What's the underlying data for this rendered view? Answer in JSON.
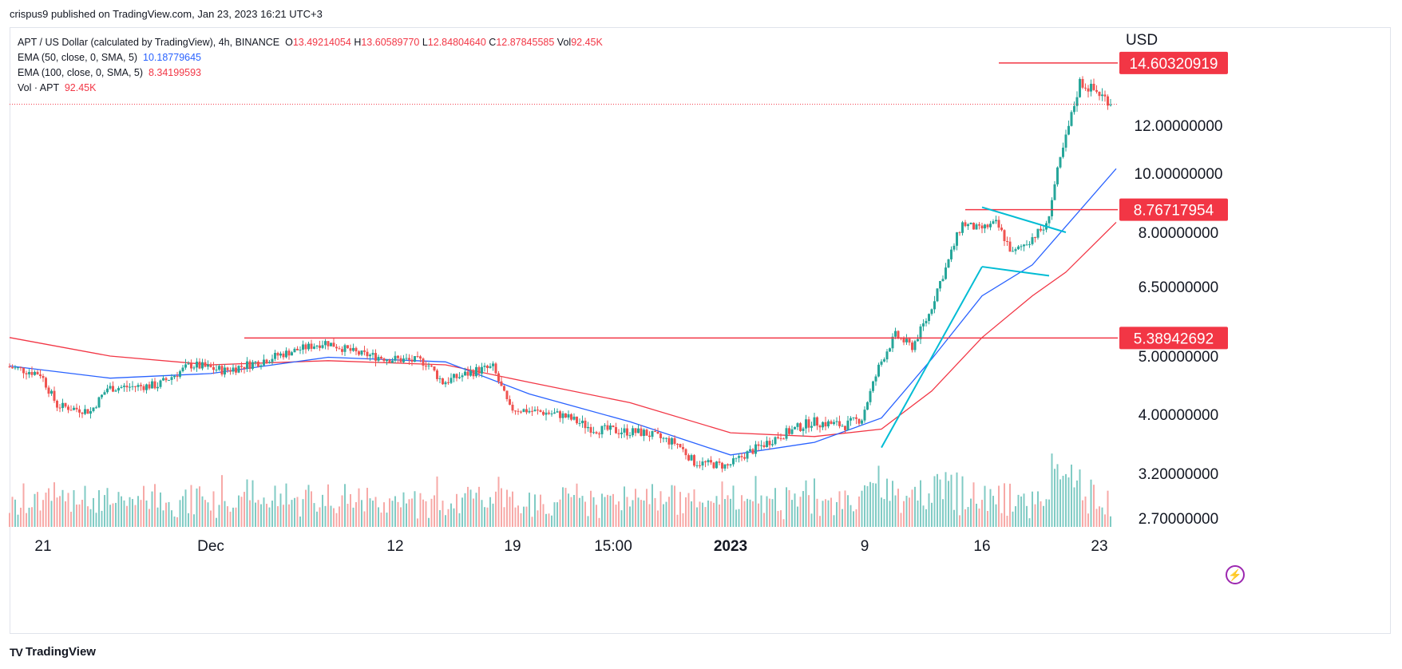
{
  "header": {
    "published_text": "crispus9 published on TradingView.com, Jan 23, 2023 16:21 UTC+3"
  },
  "legend": {
    "symbol": "APT / US Dollar (calculated by TradingView), 4h, BINANCE",
    "o_key": "O",
    "o_val": "13.49214054",
    "h_key": "H",
    "h_val": "13.60589770",
    "l_key": "L",
    "l_val": "12.84804640",
    "c_key": "C",
    "c_val": "12.87845585",
    "vol_key": "Vol",
    "vol_val": "92.45K",
    "ema50_label": "EMA (50, close, 0, SMA, 5)",
    "ema50_val": "10.18779645",
    "ema100_label": "EMA (100, close, 0, SMA, 5)",
    "ema100_val": "8.34199593",
    "volume_label": "Vol · APT",
    "volume_val": "92.45K"
  },
  "footer": {
    "brand": "TradingView",
    "logo": "TV"
  },
  "colors": {
    "up": "#26a69a",
    "down": "#ef5350",
    "ema50": "#2962ff",
    "ema100": "#f23645",
    "hline": "#f23645",
    "trend": "#00bcd4",
    "vol_up": "#80cbc4",
    "vol_down": "#f7a9a7",
    "price_line": "#f23645"
  },
  "chart_data": {
    "type": "candlestick",
    "currency_label": "USD",
    "x_tick_labels": [
      "21",
      "Dec",
      "12",
      "19",
      "15:00",
      "2023",
      "9",
      "16",
      "23"
    ],
    "x_tick_dates": [
      "2022-11-21",
      "2022-12-01",
      "2022-12-12",
      "2022-12-19",
      "2022-12-25 15:00",
      "2023-01-01",
      "2023-01-09",
      "2023-01-16",
      "2023-01-23"
    ],
    "y_tick_labels": [
      "2.70000000",
      "3.20000000",
      "4.00000000",
      "5.00000000",
      "6.50000000",
      "8.00000000",
      "10.00000000",
      "12.00000000"
    ],
    "y_ticks": [
      2.7,
      3.2,
      4.0,
      5.0,
      6.5,
      8.0,
      10.0,
      12.0
    ],
    "y_range": [
      2.6,
      16.0
    ],
    "horizontal_levels": [
      {
        "value": 14.60320919,
        "label": "14.60320919",
        "from_date": "2023-01-17"
      },
      {
        "value": 8.76717954,
        "label": "8.76717954",
        "from_date": "2023-01-15"
      },
      {
        "value": 5.38942692,
        "label": "5.38942692",
        "from_date": "2022-12-03"
      }
    ],
    "last_price": 12.87845585,
    "price_path_keypoints": [
      [
        "2022-11-19",
        4.82
      ],
      [
        "2022-11-21",
        4.7
      ],
      [
        "2022-11-22",
        4.15
      ],
      [
        "2022-11-24",
        4.05
      ],
      [
        "2022-11-25",
        4.45
      ],
      [
        "2022-11-28",
        4.5
      ],
      [
        "2022-11-30",
        4.85
      ],
      [
        "2022-12-02",
        4.75
      ],
      [
        "2022-12-04",
        4.9
      ],
      [
        "2022-12-06",
        5.1
      ],
      [
        "2022-12-08",
        5.3
      ],
      [
        "2022-12-10",
        5.05
      ],
      [
        "2022-12-12",
        4.95
      ],
      [
        "2022-12-14",
        4.9
      ],
      [
        "2022-12-15",
        4.55
      ],
      [
        "2022-12-17",
        4.75
      ],
      [
        "2022-12-18",
        4.8
      ],
      [
        "2022-12-19",
        4.1
      ],
      [
        "2022-12-22",
        4.0
      ],
      [
        "2022-12-24",
        3.8
      ],
      [
        "2022-12-27",
        3.75
      ],
      [
        "2022-12-29",
        3.6
      ],
      [
        "2022-12-30",
        3.35
      ],
      [
        "2023-01-01",
        3.3
      ],
      [
        "2023-01-02",
        3.45
      ],
      [
        "2023-01-04",
        3.7
      ],
      [
        "2023-01-06",
        3.9
      ],
      [
        "2023-01-08",
        3.85
      ],
      [
        "2023-01-09",
        3.95
      ],
      [
        "2023-01-10",
        4.8
      ],
      [
        "2023-01-11",
        5.45
      ],
      [
        "2023-01-12",
        5.2
      ],
      [
        "2023-01-13",
        5.9
      ],
      [
        "2023-01-14",
        7.0
      ],
      [
        "2023-01-15",
        8.3
      ],
      [
        "2023-01-16",
        8.1
      ],
      [
        "2023-01-17",
        8.3
      ],
      [
        "2023-01-18",
        7.4
      ],
      [
        "2023-01-19",
        7.8
      ],
      [
        "2023-01-20",
        8.2
      ],
      [
        "2023-01-21",
        11.0
      ],
      [
        "2023-01-22",
        13.8
      ],
      [
        "2023-01-23",
        13.4
      ],
      [
        "2023-01-24",
        12.88
      ]
    ],
    "ema50_keypoints": [
      [
        "2022-11-19",
        4.83
      ],
      [
        "2022-11-25",
        4.62
      ],
      [
        "2022-12-01",
        4.7
      ],
      [
        "2022-12-08",
        4.98
      ],
      [
        "2022-12-15",
        4.9
      ],
      [
        "2022-12-20",
        4.35
      ],
      [
        "2022-12-26",
        3.9
      ],
      [
        "2023-01-01",
        3.45
      ],
      [
        "2023-01-06",
        3.62
      ],
      [
        "2023-01-10",
        3.95
      ],
      [
        "2023-01-13",
        4.95
      ],
      [
        "2023-01-16",
        6.3
      ],
      [
        "2023-01-19",
        7.1
      ],
      [
        "2023-01-21",
        8.2
      ],
      [
        "2023-01-24",
        10.19
      ]
    ],
    "ema100_keypoints": [
      [
        "2022-11-19",
        5.4
      ],
      [
        "2022-11-25",
        5.0
      ],
      [
        "2022-12-01",
        4.85
      ],
      [
        "2022-12-08",
        4.92
      ],
      [
        "2022-12-15",
        4.85
      ],
      [
        "2022-12-20",
        4.55
      ],
      [
        "2022-12-26",
        4.2
      ],
      [
        "2023-01-01",
        3.75
      ],
      [
        "2023-01-06",
        3.7
      ],
      [
        "2023-01-10",
        3.8
      ],
      [
        "2023-01-13",
        4.4
      ],
      [
        "2023-01-16",
        5.4
      ],
      [
        "2023-01-19",
        6.3
      ],
      [
        "2023-01-21",
        6.9
      ],
      [
        "2023-01-24",
        8.34
      ]
    ],
    "trend_lines": [
      {
        "name": "rising-trendline",
        "from": [
          "2023-01-10",
          3.55
        ],
        "to": [
          "2023-01-16",
          7.05
        ]
      },
      {
        "name": "flag-upper",
        "from": [
          "2023-01-16",
          8.85
        ],
        "to": [
          "2023-01-21",
          8.0
        ]
      },
      {
        "name": "flag-lower",
        "from": [
          "2023-01-16",
          7.05
        ],
        "to": [
          "2023-01-20",
          6.8
        ]
      }
    ],
    "volume_max": 170000
  }
}
